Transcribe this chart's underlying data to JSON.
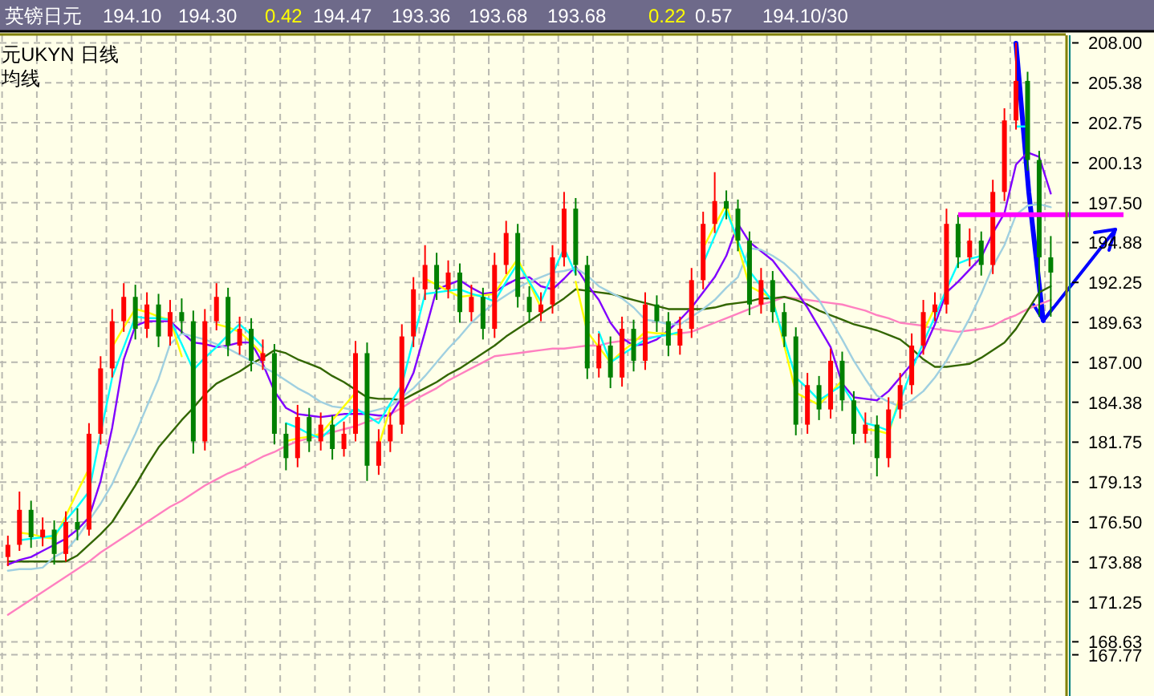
{
  "chart_data": {
    "type": "candlestick",
    "title": "英镑日元",
    "annotations": [
      "194.10",
      "194.30",
      "0.42",
      "194.47",
      "193.36",
      "193.68",
      "193.68",
      "0.22",
      "0.57",
      "194.10/30",
      "元UKYN",
      "日线",
      "均线"
    ],
    "categories": [
      null,
      null,
      null,
      null,
      null,
      null,
      null,
      null,
      null,
      null,
      null,
      null,
      null,
      null,
      null,
      null,
      null,
      null,
      null,
      null,
      null,
      null,
      null,
      null,
      null,
      null,
      null,
      null,
      null,
      null,
      null,
      null,
      null,
      null,
      null,
      null,
      null,
      null,
      null,
      null,
      null,
      null,
      null,
      null,
      null,
      null,
      null,
      null,
      null,
      null,
      null,
      null,
      null,
      null,
      null,
      null,
      null,
      null,
      null,
      null,
      null,
      null,
      null,
      null,
      null,
      null,
      null,
      null,
      null,
      null,
      null,
      null,
      null,
      null,
      null,
      null,
      null,
      null,
      null,
      null,
      null,
      null,
      null,
      null,
      null,
      null,
      null,
      null,
      null,
      null,
      null
    ],
    "ohlc": [
      [
        174.2,
        175.6,
        173.6,
        175.0
      ],
      [
        175.0,
        178.5,
        174.6,
        177.3
      ],
      [
        177.3,
        177.9,
        174.8,
        175.5
      ],
      [
        175.5,
        176.8,
        174.9,
        176.0
      ],
      [
        176.0,
        176.6,
        173.7,
        174.4
      ],
      [
        174.4,
        177.2,
        173.9,
        176.5
      ],
      [
        176.5,
        177.4,
        175.3,
        176.0
      ],
      [
        176.0,
        183.0,
        175.6,
        182.3
      ],
      [
        182.3,
        187.4,
        181.6,
        186.6
      ],
      [
        186.6,
        190.5,
        186.0,
        189.7
      ],
      [
        189.7,
        192.2,
        189.0,
        191.3
      ],
      [
        191.3,
        192.1,
        188.5,
        189.2
      ],
      [
        189.2,
        191.6,
        188.6,
        190.8
      ],
      [
        190.8,
        191.5,
        188.0,
        188.7
      ],
      [
        188.7,
        191.1,
        188.1,
        190.3
      ],
      [
        190.3,
        191.2,
        188.9,
        189.7
      ],
      [
        189.7,
        190.4,
        181.0,
        181.8
      ],
      [
        181.8,
        190.5,
        181.2,
        189.7
      ],
      [
        189.7,
        192.2,
        189.1,
        191.3
      ],
      [
        191.3,
        191.9,
        187.4,
        188.1
      ],
      [
        188.1,
        190.0,
        187.5,
        189.2
      ],
      [
        189.2,
        189.9,
        186.4,
        187.1
      ],
      [
        187.1,
        188.5,
        186.5,
        187.6
      ],
      [
        187.6,
        188.2,
        181.6,
        182.3
      ],
      [
        182.3,
        183.0,
        179.9,
        180.7
      ],
      [
        180.7,
        184.2,
        180.1,
        183.4
      ],
      [
        183.4,
        184.0,
        181.1,
        181.8
      ],
      [
        181.8,
        183.7,
        181.2,
        182.9
      ],
      [
        182.9,
        183.5,
        180.6,
        181.3
      ],
      [
        181.3,
        183.1,
        180.8,
        182.3
      ],
      [
        182.3,
        188.4,
        181.8,
        187.6
      ],
      [
        187.6,
        188.3,
        179.2,
        180.2
      ],
      [
        180.2,
        182.6,
        179.6,
        181.8
      ],
      [
        181.8,
        183.7,
        181.1,
        182.9
      ],
      [
        182.9,
        189.5,
        182.3,
        188.7
      ],
      [
        188.7,
        192.6,
        188.0,
        191.8
      ],
      [
        191.8,
        194.7,
        191.1,
        193.4
      ],
      [
        193.4,
        194.2,
        191.1,
        191.8
      ],
      [
        191.8,
        193.7,
        191.2,
        192.9
      ],
      [
        192.9,
        193.5,
        189.6,
        190.3
      ],
      [
        190.3,
        192.1,
        189.7,
        191.3
      ],
      [
        191.3,
        191.9,
        188.5,
        189.2
      ],
      [
        189.2,
        194.2,
        188.6,
        193.4
      ],
      [
        193.4,
        196.3,
        192.8,
        195.5
      ],
      [
        195.5,
        196.1,
        190.6,
        191.3
      ],
      [
        191.3,
        192.0,
        189.6,
        190.3
      ],
      [
        190.3,
        191.6,
        189.7,
        190.8
      ],
      [
        190.8,
        194.7,
        190.2,
        193.9
      ],
      [
        193.9,
        198.2,
        193.3,
        197.1
      ],
      [
        197.1,
        197.8,
        192.7,
        193.4
      ],
      [
        193.4,
        194.0,
        185.9,
        186.6
      ],
      [
        186.6,
        188.9,
        186.0,
        188.1
      ],
      [
        188.1,
        188.7,
        185.3,
        186.0
      ],
      [
        186.0,
        190.0,
        185.4,
        189.2
      ],
      [
        189.2,
        189.8,
        186.4,
        187.1
      ],
      [
        187.1,
        191.6,
        186.5,
        190.8
      ],
      [
        190.8,
        191.4,
        189.0,
        189.7
      ],
      [
        189.7,
        190.3,
        187.4,
        188.1
      ],
      [
        188.1,
        190.0,
        187.5,
        189.2
      ],
      [
        189.2,
        193.2,
        188.6,
        192.4
      ],
      [
        192.4,
        196.9,
        191.8,
        196.1
      ],
      [
        196.1,
        199.5,
        195.5,
        197.6
      ],
      [
        197.6,
        198.3,
        196.4,
        197.1
      ],
      [
        197.1,
        197.7,
        194.3,
        195.0
      ],
      [
        195.0,
        195.6,
        190.1,
        190.8
      ],
      [
        190.8,
        193.2,
        190.2,
        192.4
      ],
      [
        192.4,
        193.0,
        189.6,
        190.3
      ],
      [
        190.3,
        190.9,
        188.0,
        188.7
      ],
      [
        188.7,
        189.3,
        182.2,
        182.9
      ],
      [
        182.9,
        186.3,
        182.3,
        185.5
      ],
      [
        185.5,
        186.1,
        183.2,
        183.9
      ],
      [
        183.9,
        187.9,
        183.3,
        187.1
      ],
      [
        187.1,
        187.7,
        183.8,
        184.5
      ],
      [
        184.5,
        185.1,
        181.6,
        182.3
      ],
      [
        182.3,
        183.7,
        181.7,
        182.9
      ],
      [
        182.9,
        183.5,
        179.5,
        180.7
      ],
      [
        180.7,
        184.7,
        180.1,
        183.9
      ],
      [
        183.9,
        186.3,
        183.3,
        185.5
      ],
      [
        185.5,
        188.9,
        184.9,
        188.1
      ],
      [
        188.1,
        191.1,
        187.5,
        190.3
      ],
      [
        190.3,
        191.6,
        189.7,
        190.8
      ],
      [
        190.8,
        197.1,
        190.2,
        196.1
      ],
      [
        196.1,
        196.7,
        193.2,
        193.9
      ],
      [
        193.9,
        195.8,
        193.3,
        195.0
      ],
      [
        195.0,
        195.6,
        192.7,
        193.4
      ],
      [
        193.4,
        199.0,
        192.8,
        198.2
      ],
      [
        198.2,
        203.7,
        197.6,
        202.9
      ],
      [
        202.9,
        208.0,
        202.3,
        205.5
      ],
      [
        205.5,
        206.1,
        199.6,
        200.3
      ],
      [
        200.3,
        200.9,
        190.0,
        193.9
      ],
      [
        193.9,
        195.3,
        190.0,
        192.9
      ]
    ],
    "series": [
      {
        "type": "line",
        "color": "#ff80c0",
        "values": [
          170.4,
          170.9,
          171.4,
          171.9,
          172.4,
          172.9,
          173.4,
          173.9,
          174.5,
          175.0,
          175.5,
          176.0,
          176.5,
          177.0,
          177.5,
          177.9,
          178.4,
          178.9,
          179.3,
          179.7,
          180.0,
          180.4,
          180.8,
          181.1,
          181.5,
          181.8,
          182.0,
          182.2,
          182.4,
          182.6,
          182.8,
          183.1,
          183.3,
          183.6,
          184.0,
          184.5,
          184.9,
          185.3,
          185.8,
          186.2,
          186.6,
          187.0,
          187.4,
          187.5,
          187.6,
          187.7,
          187.8,
          187.9,
          187.9,
          188.0,
          188.1,
          188.1,
          188.3,
          188.4,
          188.5,
          188.6,
          188.7,
          188.8,
          188.9,
          189.0,
          189.3,
          189.6,
          189.9,
          190.2,
          190.5,
          190.8,
          191.0,
          191.3,
          191.2,
          191.1,
          191.0,
          190.9,
          190.8,
          190.6,
          190.4,
          190.1,
          189.9,
          189.6,
          189.5,
          189.4,
          189.2,
          189.1,
          189.0,
          189.1,
          189.2,
          189.4,
          189.8,
          190.1,
          190.5,
          190.8,
          191.1
        ]
      },
      {
        "type": "line",
        "color": "#336600",
        "values": [
          173.9,
          173.9,
          173.9,
          173.9,
          173.9,
          173.9,
          174.3,
          175.0,
          175.7,
          176.5,
          177.7,
          178.9,
          180.2,
          181.4,
          182.3,
          183.2,
          184.0,
          184.9,
          185.6,
          186.0,
          186.4,
          186.9,
          187.3,
          187.8,
          187.6,
          187.2,
          186.9,
          186.6,
          186.1,
          185.7,
          185.2,
          184.7,
          184.6,
          184.6,
          184.5,
          184.9,
          185.3,
          185.7,
          186.2,
          186.6,
          187.1,
          187.6,
          188.1,
          188.7,
          189.2,
          189.7,
          190.2,
          190.7,
          191.2,
          191.8,
          191.7,
          191.6,
          191.5,
          191.3,
          191.1,
          190.9,
          190.7,
          190.5,
          190.5,
          190.5,
          190.5,
          190.6,
          190.8,
          190.9,
          191.0,
          191.2,
          191.2,
          191.3,
          191.1,
          190.8,
          190.4,
          190.1,
          189.8,
          189.5,
          189.3,
          189.1,
          188.8,
          188.5,
          187.9,
          187.2,
          186.7,
          186.7,
          186.8,
          186.9,
          187.3,
          187.8,
          188.3,
          189.2,
          190.4,
          191.6,
          192.0
        ]
      },
      {
        "type": "line",
        "color": "#8000ff",
        "values": [
          173.7,
          174.0,
          174.2,
          174.6,
          175.0,
          175.4,
          176.0,
          176.8,
          179.2,
          182.7,
          187.2,
          189.4,
          189.7,
          189.7,
          189.7,
          189.0,
          188.3,
          188.2,
          188.0,
          188.1,
          188.3,
          188.3,
          186.9,
          185.1,
          184.0,
          183.6,
          183.5,
          183.4,
          183.5,
          183.6,
          183.6,
          183.6,
          183.5,
          183.5,
          184.7,
          186.3,
          189.0,
          191.8,
          192.1,
          192.4,
          191.9,
          191.5,
          191.6,
          192.1,
          192.5,
          192.6,
          192.0,
          191.8,
          192.5,
          193.3,
          192.1,
          191.1,
          189.6,
          188.6,
          188.1,
          188.2,
          188.5,
          189.1,
          189.8,
          190.6,
          191.6,
          192.6,
          194.0,
          196.1,
          194.9,
          194.3,
          193.7,
          192.7,
          191.7,
          190.6,
          189.3,
          188.0,
          185.6,
          184.7,
          184.6,
          184.5,
          185.1,
          186.0,
          186.9,
          187.8,
          189.5,
          191.6,
          192.3,
          193.1,
          193.9,
          195.5,
          196.8,
          200.0,
          200.8,
          200.5,
          198.1
        ]
      },
      {
        "type": "line",
        "color": "#a0d0e0",
        "values": [
          173.3,
          173.4,
          173.4,
          173.5,
          174.2,
          174.6,
          175.5,
          176.6,
          177.7,
          179.0,
          180.7,
          182.3,
          184.1,
          185.9,
          188.2,
          188.9,
          188.7,
          188.5,
          188.2,
          187.9,
          187.5,
          187.1,
          186.7,
          186.3,
          185.8,
          185.3,
          184.9,
          184.4,
          184.1,
          184.0,
          183.8,
          183.7,
          183.9,
          184.1,
          184.7,
          185.3,
          186.1,
          187.0,
          187.9,
          188.7,
          189.6,
          190.3,
          190.9,
          191.4,
          191.9,
          192.3,
          192.6,
          192.9,
          193.0,
          193.2,
          192.7,
          192.0,
          191.6,
          191.2,
          190.6,
          189.8,
          189.7,
          189.5,
          189.5,
          190.0,
          190.5,
          191.1,
          191.9,
          192.6,
          194.5,
          194.4,
          194.0,
          193.5,
          192.8,
          191.9,
          191.1,
          189.8,
          188.5,
          187.1,
          185.9,
          184.8,
          184.4,
          184.1,
          184.5,
          185.1,
          186.0,
          187.1,
          188.5,
          189.9,
          191.5,
          193.3,
          194.7,
          196.7,
          197.3,
          197.4,
          197.2
        ]
      },
      {
        "type": "line",
        "color": "#ffff00",
        "values": [
          null,
          175.8,
          175.7,
          175.5,
          175.4,
          176.9,
          178.5,
          180.0,
          null,
          188.0,
          189.3,
          190.5,
          190.3,
          190.0,
          189.8,
          187.4,
          null,
          null,
          189.5,
          189.3,
          189.0,
          188.3,
          187.5,
          null,
          181.8,
          182.0,
          182.1,
          182.3,
          183.2,
          184.1,
          185.0,
          null,
          181.5,
          184.0,
          null,
          null,
          192.5,
          192.1,
          191.7,
          191.3,
          191.4,
          191.4,
          191.5,
          192.7,
          193.8,
          192.2,
          190.6,
          null,
          null,
          192.3,
          189.0,
          188.0,
          187.0,
          187.7,
          188.3,
          189.0,
          188.9,
          188.9,
          188.8,
          null,
          194.5,
          196.0,
          197.4,
          194.7,
          192.0,
          191.6,
          191.2,
          188.1,
          185.0,
          184.6,
          184.2,
          185.0,
          185.8,
          null,
          182.6,
          182.5,
          182.3,
          184.8,
          null,
          189.0,
          190.6,
          null,
          null,
          null,
          null,
          null,
          null,
          null,
          null,
          null,
          null
        ]
      },
      {
        "type": "line",
        "color": "#00ffff",
        "values": [
          null,
          175.3,
          175.4,
          175.5,
          175.6,
          176.6,
          177.5,
          178.5,
          182.3,
          186.0,
          188.0,
          190.0,
          189.9,
          189.9,
          189.8,
          188.2,
          186.5,
          187.3,
          188.0,
          188.8,
          189.5,
          188.8,
          188.0,
          null,
          183.0,
          182.7,
          182.3,
          182.0,
          182.7,
          183.3,
          184.0,
          183.5,
          183.0,
          184.3,
          185.5,
          188.5,
          191.5,
          191.6,
          191.7,
          191.8,
          191.5,
          191.3,
          191.0,
          192.3,
          193.5,
          192.3,
          191.0,
          192.8,
          194.5,
          192.8,
          null,
          189.0,
          187.0,
          187.5,
          188.0,
          188.5,
          188.7,
          188.8,
          189.0,
          null,
          193.5,
          195.3,
          197.0,
          195.0,
          193.0,
          192.0,
          191.0,
          188.5,
          186.0,
          185.3,
          184.5,
          185.0,
          185.5,
          184.3,
          183.0,
          182.8,
          182.5,
          184.5,
          186.5,
          188.3,
          190.0,
          191.8,
          193.5,
          193.8,
          194.0,
          null,
          null,
          202.5,
          202.5,
          null,
          null
        ]
      }
    ],
    "ref_lines": [
      {
        "axis": "y",
        "value": 196.7,
        "color": "#ff00ff"
      }
    ],
    "ylim": [
      165.06,
      208.5
    ],
    "yticks": [
      {
        "value": 208,
        "label": "208.00"
      },
      {
        "value": 205.375,
        "label": "205.38"
      },
      {
        "value": 202.75,
        "label": "202.75"
      },
      {
        "value": 200.125,
        "label": "200.13"
      },
      {
        "value": 197.5,
        "label": "197.50"
      },
      {
        "value": 194.875,
        "label": "194.88"
      },
      {
        "value": 192.25,
        "label": "192.25"
      },
      {
        "value": 189.625,
        "label": "189.63"
      },
      {
        "value": 187,
        "label": "187.00"
      },
      {
        "value": 184.375,
        "label": "184.38"
      },
      {
        "value": 181.75,
        "label": "181.75"
      },
      {
        "value": 179.125,
        "label": "179.13"
      },
      {
        "value": 176.5,
        "label": "176.50"
      },
      {
        "value": 173.875,
        "label": "173.88"
      },
      {
        "value": 171.25,
        "label": "171.25"
      },
      {
        "value": 168.625,
        "label": "168.63"
      },
      {
        "value": 167.77,
        "label": "167.77"
      }
    ],
    "tick_labels": "y",
    "grid": true,
    "line_style": "solid",
    "marker": "none"
  }
}
